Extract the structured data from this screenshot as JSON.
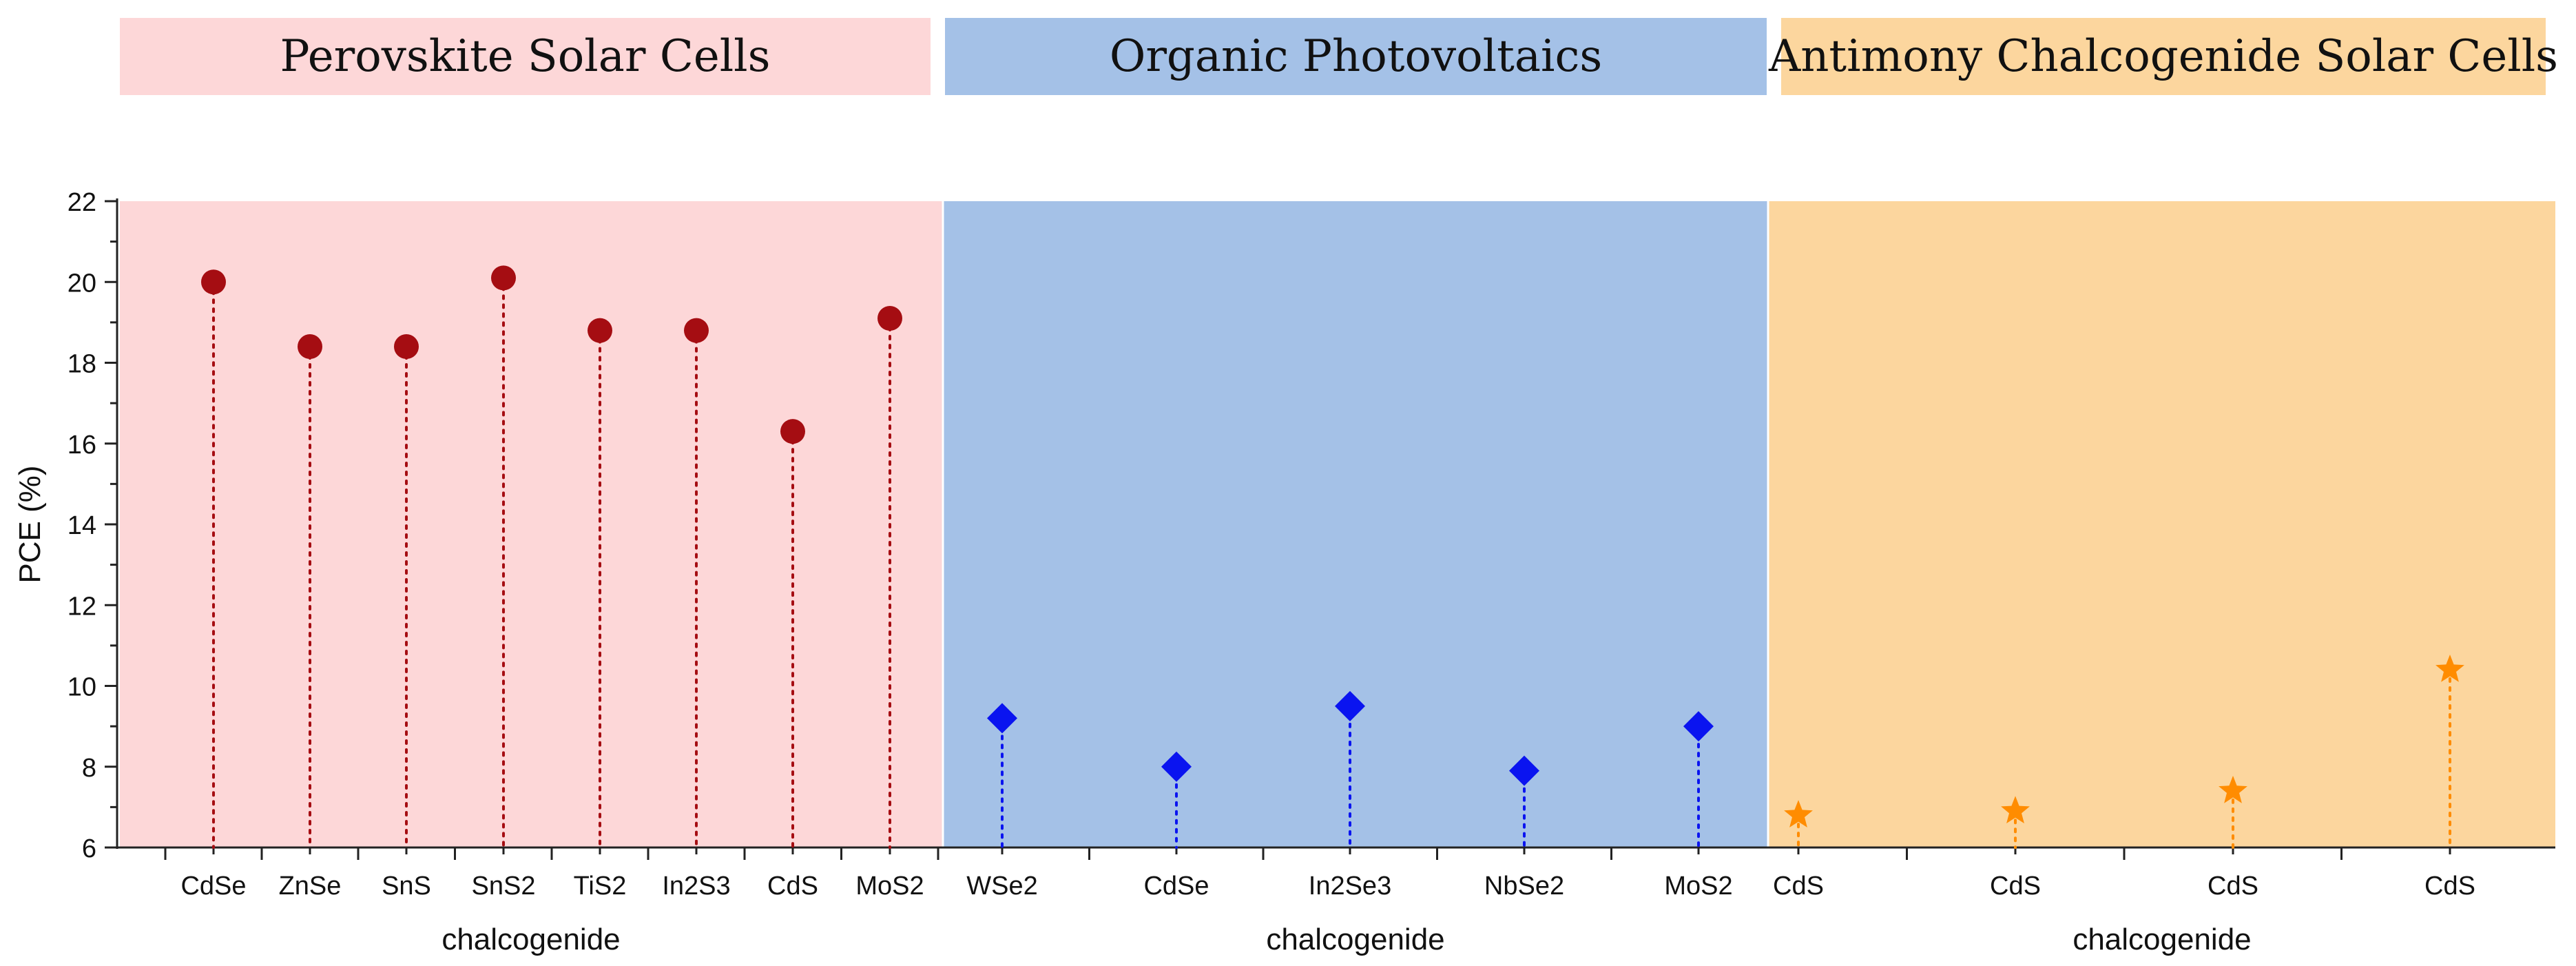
{
  "headers": [
    {
      "label": "Perovskite Solar Cells",
      "color": "#fdd7d8"
    },
    {
      "label": "Organic Photovoltaics",
      "color": "#a4c1e7"
    },
    {
      "label": "Antimony Chalcogenide Solar Cells",
      "color": "#fcd69e"
    }
  ],
  "chart_data": {
    "type": "scatter",
    "title": "",
    "ylabel": "PCE (%)",
    "xlabel": "chalcogenide",
    "ylim": [
      6,
      22
    ],
    "yticks": [
      6,
      8,
      10,
      12,
      14,
      16,
      18,
      20,
      22
    ],
    "grid": false,
    "series": [
      {
        "name": "Perovskite Solar Cells",
        "background": "#fdd7d8",
        "marker": "circle",
        "color": "#a50d12",
        "xlabel": "chalcogenide",
        "categories": [
          "CdSe",
          "ZnSe",
          "SnS",
          "SnS2",
          "TiS2",
          "In2S3",
          "CdS",
          "MoS2"
        ],
        "values": [
          20.0,
          18.4,
          18.4,
          20.1,
          18.8,
          18.8,
          16.3,
          19.1
        ]
      },
      {
        "name": "Organic Photovoltaics",
        "background": "#a4c1e7",
        "marker": "diamond",
        "color": "#0a14f0",
        "xlabel": "chalcogenide",
        "categories": [
          "WSe2",
          "CdSe",
          "In2Se3",
          "NbSe2",
          "MoS2"
        ],
        "values": [
          9.2,
          8.0,
          9.5,
          7.9,
          9.0
        ]
      },
      {
        "name": "Antimony Chalcogenide Solar Cells",
        "background": "#fcd69e",
        "marker": "star",
        "color": "#ff8c00",
        "xlabel": "chalcogenide",
        "categories": [
          "CdS",
          "CdS",
          "CdS",
          "CdS"
        ],
        "values": [
          6.8,
          6.9,
          7.4,
          10.4
        ]
      }
    ]
  }
}
